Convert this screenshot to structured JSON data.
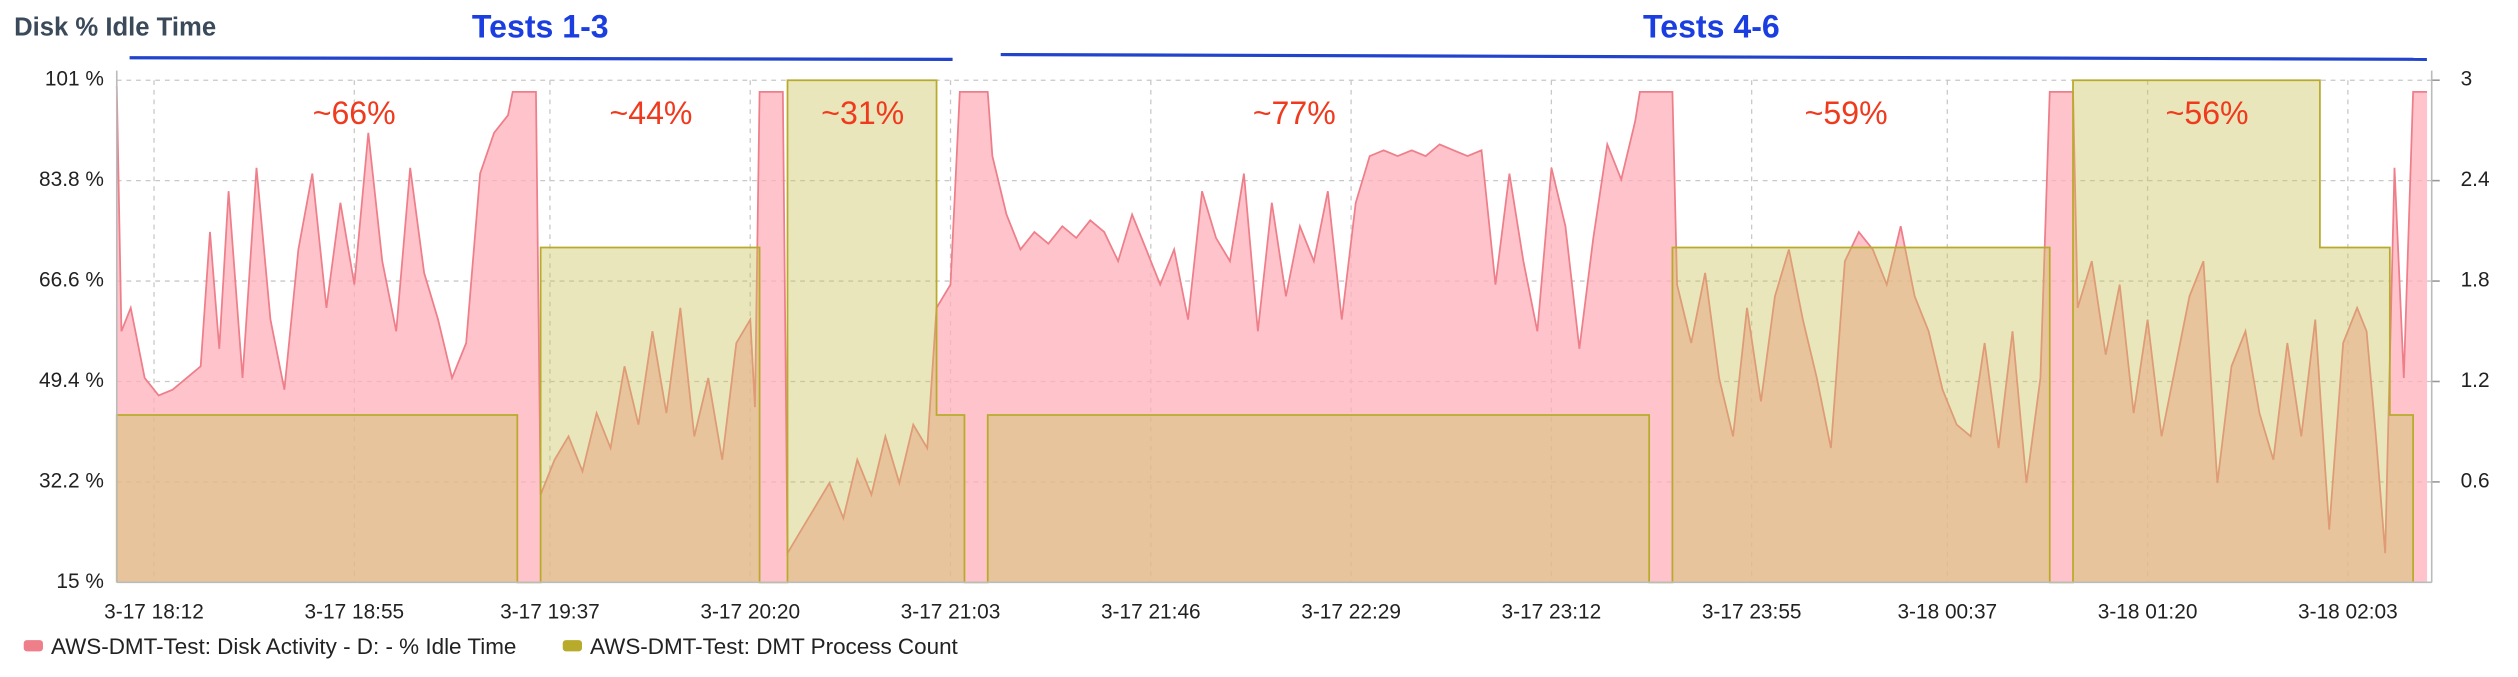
{
  "chart_data": {
    "type": "area",
    "title": "Disk % Idle Time",
    "annotations": [
      "Tests 1-3",
      "Tests 4-6",
      "~66%",
      "~44%",
      "~31%",
      "~77%",
      "~59%",
      "~56%"
    ],
    "grid": true,
    "legend": "bottom-left",
    "xlim": [
      "3-17 18:04",
      "3-18 02:21"
    ],
    "xticks": [
      "3-17 18:12",
      "3-17 18:55",
      "3-17 19:37",
      "3-17 20:20",
      "3-17 21:03",
      "3-17 21:46",
      "3-17 22:29",
      "3-17 23:12",
      "3-17 23:55",
      "3-18 00:37",
      "3-18 01:20",
      "3-18 02:03"
    ],
    "ylim": [
      15,
      101
    ],
    "yticks": [
      {
        "value": 15,
        "label": "15 %"
      },
      {
        "value": 32.2,
        "label": "32.2 %"
      },
      {
        "value": 49.4,
        "label": "49.4 %"
      },
      {
        "value": 66.6,
        "label": "66.6 %"
      },
      {
        "value": 83.8,
        "label": "83.8 %"
      },
      {
        "value": 101,
        "label": "101 %"
      }
    ],
    "y2lim": [
      0,
      3
    ],
    "y2ticks": [
      0.6,
      1.2,
      1.8,
      2.4,
      3
    ],
    "series": [
      {
        "name": "AWS-DMT-Test: Disk Activity - D: - % Idle Time",
        "color": "#ee7f8a",
        "x": [
          "3-17 18:04",
          "3-17 18:05",
          "3-17 18:07",
          "3-17 18:10",
          "3-17 18:13",
          "3-17 18:16",
          "3-17 18:19",
          "3-17 18:22",
          "3-17 18:24",
          "3-17 18:26",
          "3-17 18:28",
          "3-17 18:31",
          "3-17 18:34",
          "3-17 18:37",
          "3-17 18:40",
          "3-17 18:43",
          "3-17 18:46",
          "3-17 18:49",
          "3-17 18:52",
          "3-17 18:55",
          "3-17 18:58",
          "3-17 19:01",
          "3-17 19:04",
          "3-17 19:07",
          "3-17 19:10",
          "3-17 19:13",
          "3-17 19:16",
          "3-17 19:19",
          "3-17 19:22",
          "3-17 19:25",
          "3-17 19:28",
          "3-17 19:29",
          "3-17 19:34",
          "3-17 19:35",
          "3-17 19:38",
          "3-17 19:41",
          "3-17 19:44",
          "3-17 19:47",
          "3-17 19:50",
          "3-17 19:53",
          "3-17 19:56",
          "3-17 19:59",
          "3-17 20:02",
          "3-17 20:05",
          "3-17 20:08",
          "3-17 20:11",
          "3-17 20:14",
          "3-17 20:17",
          "3-17 20:20",
          "3-17 20:21",
          "3-17 20:22",
          "3-17 20:27",
          "3-17 20:28",
          "3-17 20:31",
          "3-17 20:34",
          "3-17 20:37",
          "3-17 20:40",
          "3-17 20:43",
          "3-17 20:46",
          "3-17 20:49",
          "3-17 20:52",
          "3-17 20:55",
          "3-17 20:58",
          "3-17 21:00",
          "3-17 21:03",
          "3-17 21:05",
          "3-17 21:11",
          "3-17 21:12",
          "3-17 21:15",
          "3-17 21:18",
          "3-17 21:21",
          "3-17 21:24",
          "3-17 21:27",
          "3-17 21:30",
          "3-17 21:33",
          "3-17 21:36",
          "3-17 21:39",
          "3-17 21:42",
          "3-17 21:45",
          "3-17 21:48",
          "3-17 21:51",
          "3-17 21:54",
          "3-17 21:57",
          "3-17 22:00",
          "3-17 22:03",
          "3-17 22:06",
          "3-17 22:09",
          "3-17 22:12",
          "3-17 22:15",
          "3-17 22:18",
          "3-17 22:21",
          "3-17 22:24",
          "3-17 22:27",
          "3-17 22:30",
          "3-17 22:33",
          "3-17 22:36",
          "3-17 22:39",
          "3-17 22:42",
          "3-17 22:45",
          "3-17 22:48",
          "3-17 22:51",
          "3-17 22:54",
          "3-17 22:57",
          "3-17 23:00",
          "3-17 23:03",
          "3-17 23:06",
          "3-17 23:09",
          "3-17 23:12",
          "3-17 23:15",
          "3-17 23:18",
          "3-17 23:21",
          "3-17 23:24",
          "3-17 23:27",
          "3-17 23:30",
          "3-17 23:31",
          "3-17 23:38",
          "3-17 23:39",
          "3-17 23:42",
          "3-17 23:45",
          "3-17 23:48",
          "3-17 23:51",
          "3-17 23:54",
          "3-17 23:57",
          "3-18 00:00",
          "3-18 00:03",
          "3-18 00:06",
          "3-18 00:09",
          "3-18 00:12",
          "3-18 00:15",
          "3-18 00:18",
          "3-18 00:21",
          "3-18 00:24",
          "3-18 00:27",
          "3-18 00:30",
          "3-18 00:33",
          "3-18 00:36",
          "3-18 00:39",
          "3-18 00:42",
          "3-18 00:45",
          "3-18 00:48",
          "3-18 00:51",
          "3-18 00:54",
          "3-18 00:57",
          "3-18 00:59",
          "3-18 01:04",
          "3-18 01:05",
          "3-18 01:08",
          "3-18 01:11",
          "3-18 01:14",
          "3-18 01:17",
          "3-18 01:20",
          "3-18 01:23",
          "3-18 01:26",
          "3-18 01:29",
          "3-18 01:32",
          "3-18 01:35",
          "3-18 01:38",
          "3-18 01:41",
          "3-18 01:44",
          "3-18 01:47",
          "3-18 01:50",
          "3-18 01:53",
          "3-18 01:56",
          "3-18 01:59",
          "3-18 02:02",
          "3-18 02:05",
          "3-18 02:07",
          "3-18 02:09",
          "3-18 02:11",
          "3-18 02:13",
          "3-18 02:15",
          "3-18 02:17",
          "3-18 02:20"
        ],
        "values": [
          100,
          58,
          62,
          50,
          47,
          48,
          50,
          52,
          75,
          55,
          82,
          50,
          86,
          60,
          48,
          72,
          85,
          62,
          80,
          66,
          92,
          70,
          58,
          86,
          68,
          60,
          50,
          56,
          85,
          92,
          95,
          99,
          99,
          30,
          36,
          40,
          34,
          44,
          38,
          52,
          42,
          58,
          44,
          62,
          40,
          50,
          36,
          56,
          60,
          45,
          99,
          99,
          20,
          24,
          28,
          32,
          26,
          36,
          30,
          40,
          32,
          42,
          38,
          62,
          66,
          99,
          99,
          88,
          78,
          72,
          75,
          73,
          76,
          74,
          77,
          75,
          70,
          78,
          72,
          66,
          72,
          60,
          82,
          74,
          70,
          85,
          58,
          80,
          64,
          76,
          70,
          82,
          60,
          80,
          88,
          89,
          88,
          89,
          88,
          90,
          89,
          88,
          89,
          66,
          85,
          70,
          58,
          86,
          76,
          55,
          74,
          90,
          84,
          94,
          99,
          99,
          66,
          56,
          68,
          50,
          40,
          62,
          46,
          64,
          72,
          60,
          50,
          38,
          70,
          75,
          72,
          66,
          76,
          64,
          58,
          48,
          42,
          40,
          56,
          38,
          58,
          32,
          50,
          99,
          99,
          62,
          70,
          54,
          66,
          44,
          60,
          40,
          52,
          64,
          70,
          32,
          52,
          58,
          44,
          36,
          56,
          40,
          60,
          24,
          56,
          62,
          58,
          40,
          20,
          86,
          50,
          99,
          99
        ]
      },
      {
        "name": "AWS-DMT-Test: DMT Process Count",
        "color": "#b8ab2c",
        "axis": "y2",
        "x": [
          "3-17 18:04",
          "3-17 18:04",
          "3-17 19:30",
          "3-17 19:30",
          "3-17 19:35",
          "3-17 19:35",
          "3-17 20:22",
          "3-17 20:22",
          "3-17 20:28",
          "3-17 20:28",
          "3-17 21:00",
          "3-17 21:00",
          "3-17 21:06",
          "3-17 21:06",
          "3-17 21:11",
          "3-17 21:11",
          "3-17 23:33",
          "3-17 23:33",
          "3-17 23:38",
          "3-17 23:38",
          "3-18 00:59",
          "3-18 00:59",
          "3-18 01:04",
          "3-18 01:04",
          "3-18 01:57",
          "3-18 01:57",
          "3-18 02:12",
          "3-18 02:12",
          "3-18 02:17",
          "3-18 02:17"
        ],
        "values": [
          0,
          1,
          1,
          0,
          0,
          2,
          2,
          0,
          0,
          3,
          3,
          1,
          1,
          0,
          0,
          1,
          1,
          0,
          0,
          2,
          2,
          0,
          0,
          3,
          3,
          2,
          2,
          1,
          1,
          0
        ]
      }
    ]
  }
}
